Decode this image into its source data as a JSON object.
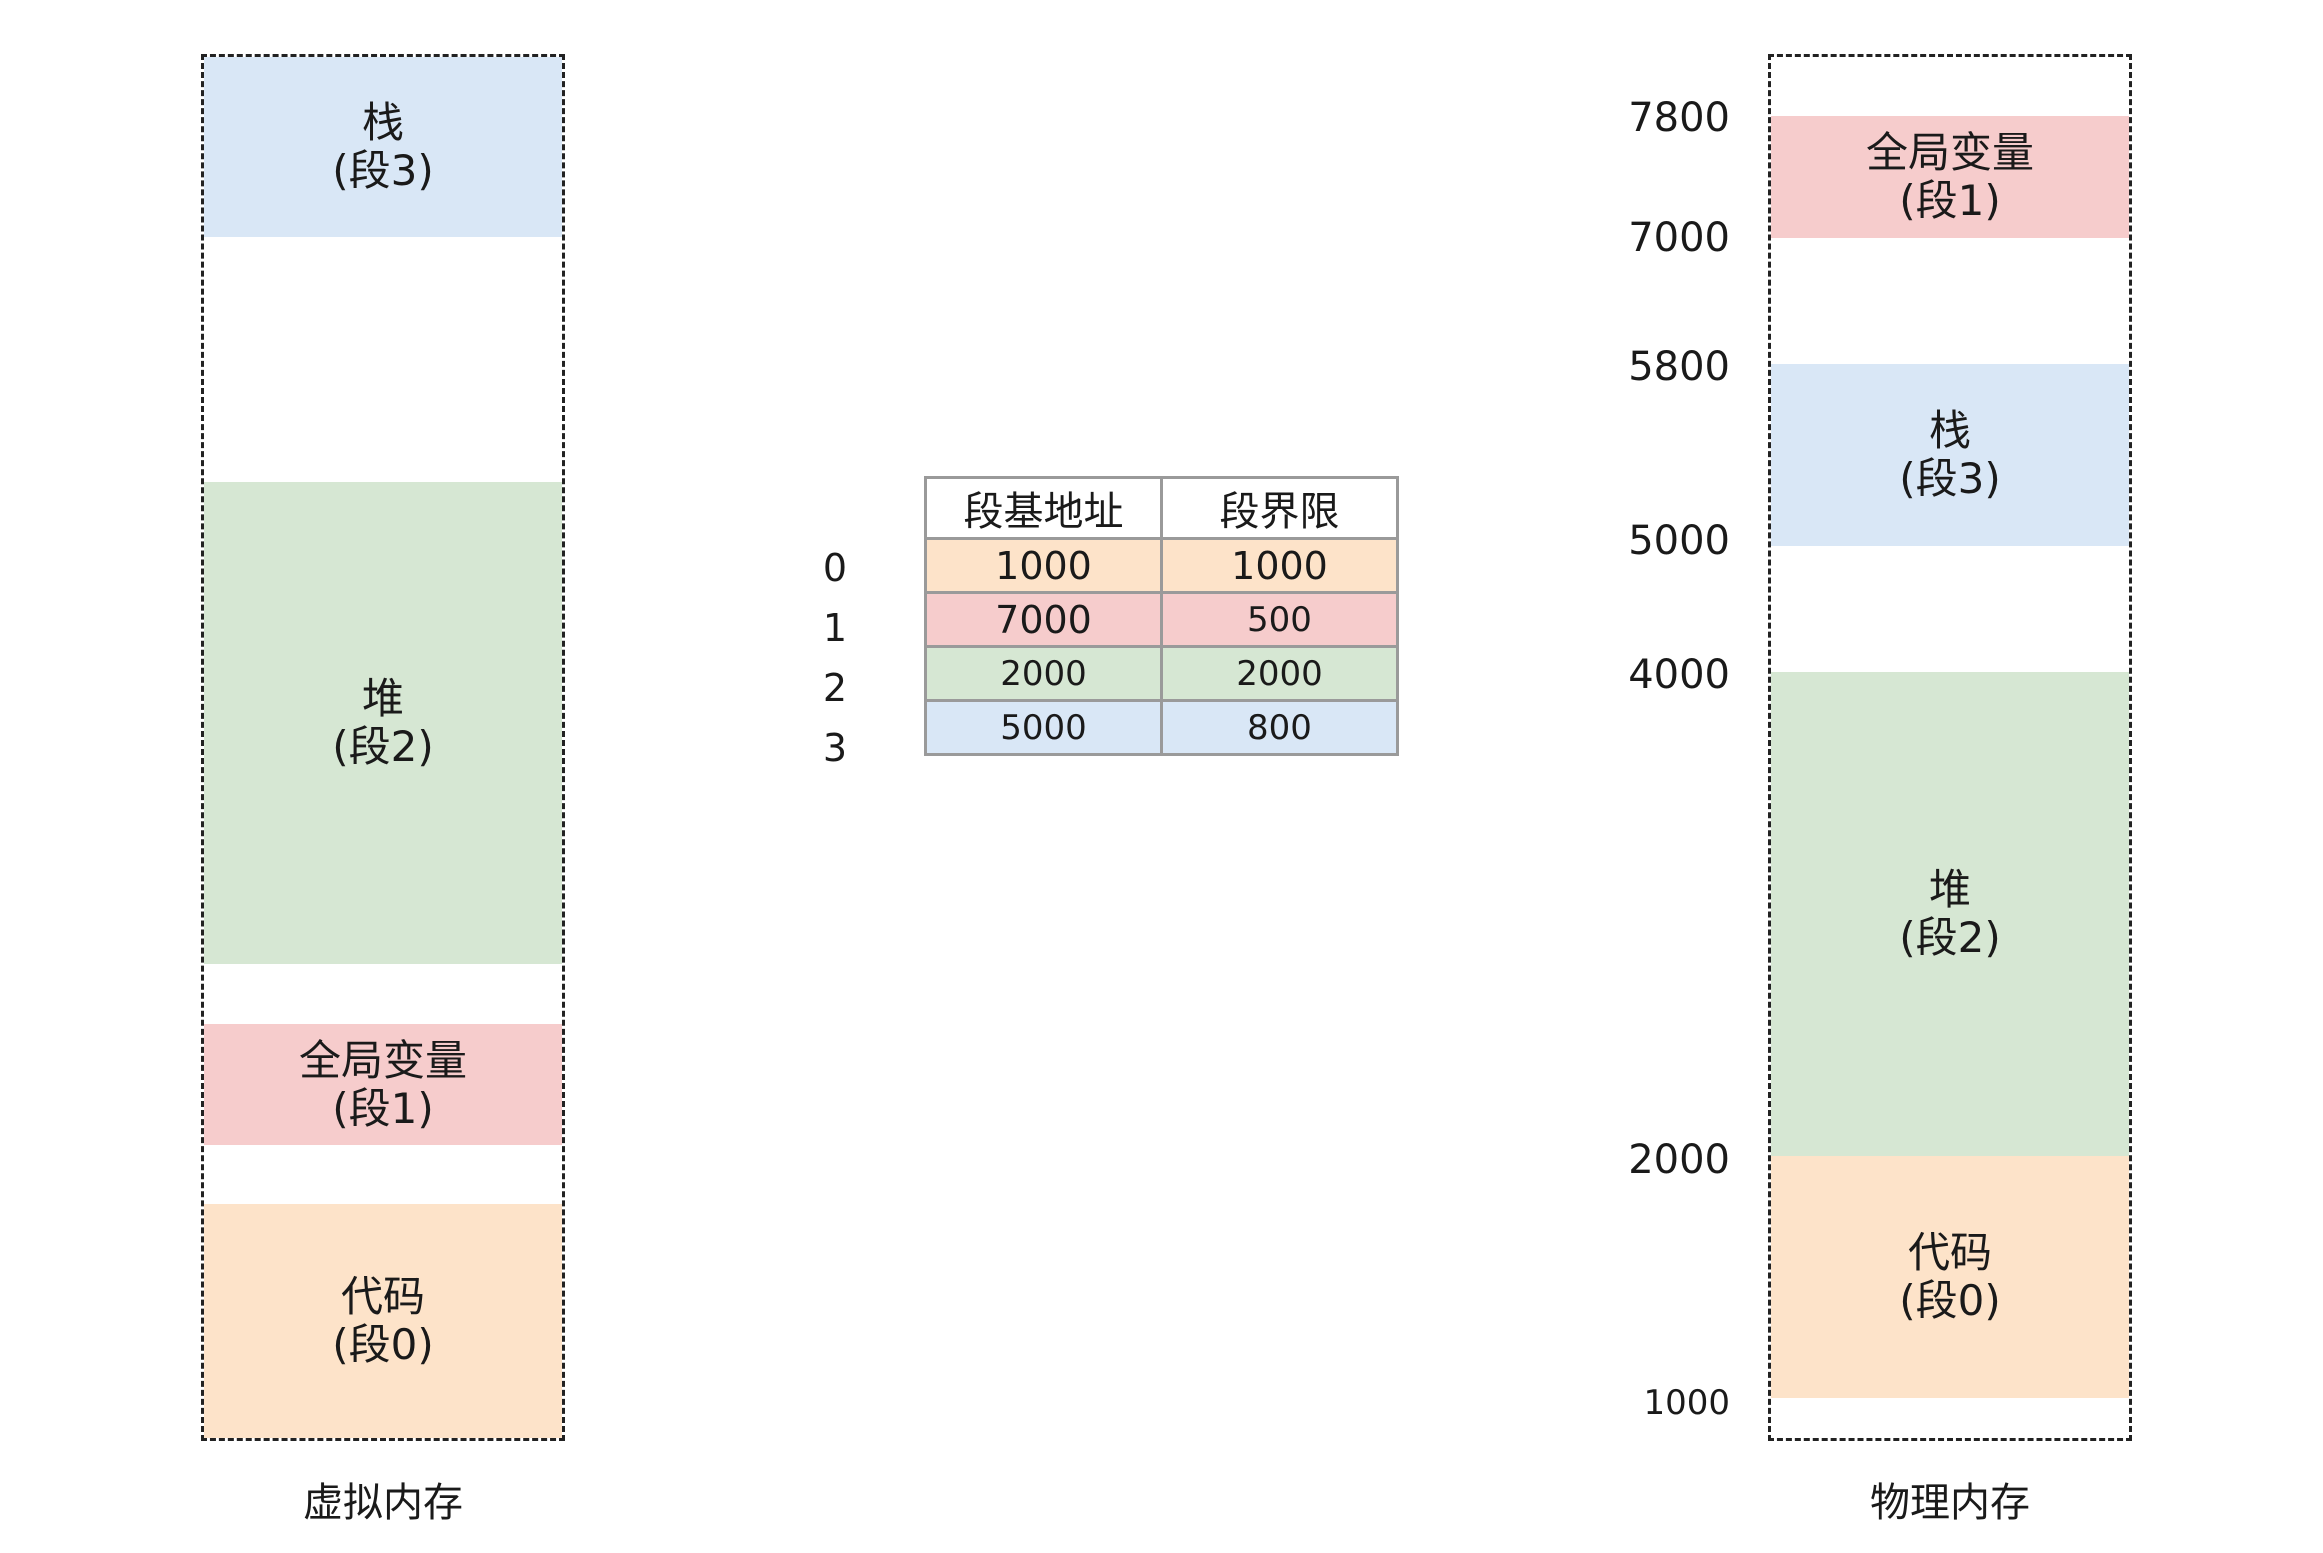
{
  "virtual_memory": {
    "caption": "虚拟内存",
    "segments": {
      "stack": {
        "name": "栈",
        "seg": "(段3)"
      },
      "heap": {
        "name": "堆",
        "seg": "(段2)"
      },
      "global": {
        "name": "全局变量",
        "seg": "(段1)"
      },
      "code": {
        "name": "代码",
        "seg": "(段0)"
      }
    }
  },
  "physical_memory": {
    "caption": "物理内存",
    "segments": {
      "global": {
        "name": "全局变量",
        "seg": "(段1)"
      },
      "stack": {
        "name": "栈",
        "seg": "(段3)"
      },
      "heap": {
        "name": "堆",
        "seg": "(段2)"
      },
      "code": {
        "name": "代码",
        "seg": "(段0)"
      }
    },
    "addresses": [
      "7800",
      "7000",
      "5800",
      "5000",
      "4000",
      "2000",
      "1000"
    ]
  },
  "segment_table": {
    "headers": [
      "段基地址",
      "段界限"
    ],
    "rows": [
      {
        "index": "0",
        "base": "1000",
        "limit": "1000"
      },
      {
        "index": "1",
        "base": "7000",
        "limit": "500"
      },
      {
        "index": "2",
        "base": "2000",
        "limit": "2000"
      },
      {
        "index": "3",
        "base": "5000",
        "limit": "800"
      }
    ]
  },
  "colors": {
    "code": "#fde3c9",
    "global": "#f6cccc",
    "heap": "#d6e7d3",
    "stack": "#d9e7f6"
  }
}
